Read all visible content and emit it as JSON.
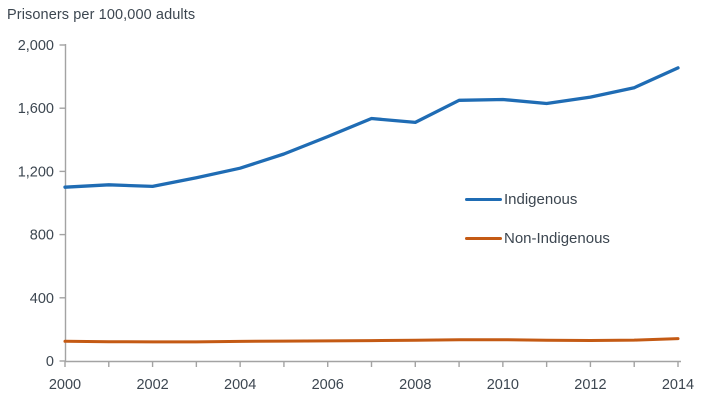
{
  "colors": {
    "axis": "#a3a3a3",
    "text": "#3c4650",
    "indigenous_line": "#1f6cb4",
    "non_indigenous_line": "#c45a14"
  },
  "chart_data": {
    "type": "line",
    "title": "Prisoners per 100,000 adults",
    "xlabel": "",
    "ylabel": "Prisoners per 100,000 adults",
    "x": [
      2000,
      2001,
      2002,
      2003,
      2004,
      2005,
      2006,
      2007,
      2008,
      2009,
      2010,
      2011,
      2012,
      2013,
      2014
    ],
    "series": [
      {
        "name": "Indigenous",
        "color": "#1f6cb4",
        "values": [
          1100,
          1115,
          1105,
          1160,
          1220,
          1310,
          1420,
          1535,
          1510,
          1650,
          1655,
          1630,
          1670,
          1730,
          1855
        ]
      },
      {
        "name": "Non-Indigenous",
        "color": "#c45a14",
        "values": [
          125,
          122,
          121,
          121,
          124,
          126,
          127,
          129,
          131,
          134,
          135,
          131,
          130,
          132,
          142
        ]
      }
    ],
    "ylim": [
      0,
      2000
    ],
    "yticks": [
      {
        "value": 0,
        "label": "0"
      },
      {
        "value": 400,
        "label": "400"
      },
      {
        "value": 800,
        "label": "800"
      },
      {
        "value": 1200,
        "label": "1,200"
      },
      {
        "value": 1600,
        "label": "1,600"
      },
      {
        "value": 2000,
        "label": "2,000"
      }
    ],
    "xticks_major": [
      {
        "value": 2000,
        "label": "2000"
      },
      {
        "value": 2002,
        "label": "2002"
      },
      {
        "value": 2004,
        "label": "2004"
      },
      {
        "value": 2006,
        "label": "2006"
      },
      {
        "value": 2008,
        "label": "2008"
      },
      {
        "value": 2010,
        "label": "2010"
      },
      {
        "value": 2012,
        "label": "2012"
      },
      {
        "value": 2014,
        "label": "2014"
      }
    ],
    "grid": false,
    "legend_position": "inside-right"
  }
}
